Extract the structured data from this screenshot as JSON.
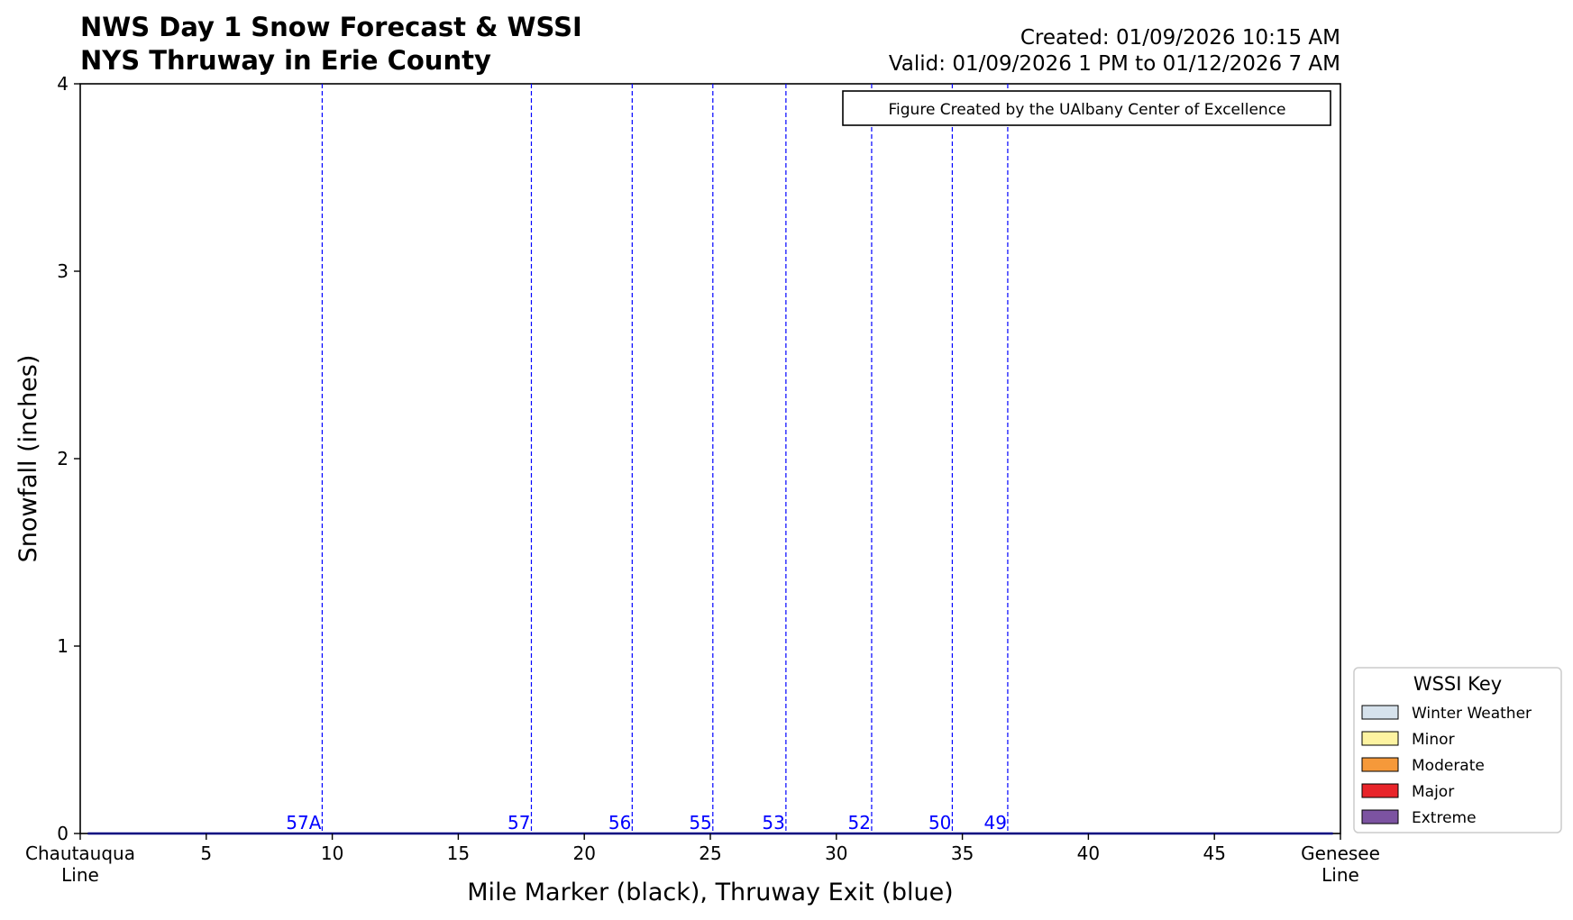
{
  "chart_data": {
    "type": "area",
    "title": "NWS Day 1 Snow Forecast & WSSI",
    "subtitle": "NYS Thruway in Erie County",
    "created": "Created: 01/09/2026 10:15 AM",
    "valid": "Valid: 01/09/2026 1 PM to 01/12/2026 7 AM",
    "credit": "Figure Created by the UAlbany Center of Excellence",
    "xlabel": "Mile Marker (black), Thruway Exit (blue)",
    "ylabel": "Snowfall (inches)",
    "xlim": [
      0,
      50
    ],
    "ylim": [
      0,
      4
    ],
    "x_ticks": [
      {
        "value": 0,
        "lines": [
          "Chautauqua",
          "Line"
        ]
      },
      {
        "value": 5,
        "lines": [
          "5"
        ]
      },
      {
        "value": 10,
        "lines": [
          "10"
        ]
      },
      {
        "value": 15,
        "lines": [
          "15"
        ]
      },
      {
        "value": 20,
        "lines": [
          "20"
        ]
      },
      {
        "value": 25,
        "lines": [
          "25"
        ]
      },
      {
        "value": 30,
        "lines": [
          "30"
        ]
      },
      {
        "value": 35,
        "lines": [
          "35"
        ]
      },
      {
        "value": 40,
        "lines": [
          "40"
        ]
      },
      {
        "value": 45,
        "lines": [
          "45"
        ]
      },
      {
        "value": 50,
        "lines": [
          "Genesee",
          "Line"
        ]
      }
    ],
    "y_ticks": [
      0,
      1,
      2,
      3,
      4
    ],
    "exits": [
      {
        "label": "57A",
        "mile": 9.6
      },
      {
        "label": "57",
        "mile": 17.9
      },
      {
        "label": "56",
        "mile": 21.9
      },
      {
        "label": "55",
        "mile": 25.1
      },
      {
        "label": "53",
        "mile": 28.0
      },
      {
        "label": "52",
        "mile": 31.4
      },
      {
        "label": "50",
        "mile": 34.6
      },
      {
        "label": "49",
        "mile": 36.8
      }
    ],
    "series": [
      {
        "x": [
          0.3,
          49.7
        ],
        "y": [
          0,
          0
        ]
      }
    ],
    "legend": {
      "title": "WSSI Key",
      "placement": "outside-bottom-right",
      "items": [
        {
          "label": "Winter Weather",
          "color": "#d6e2ec"
        },
        {
          "label": "Minor",
          "color": "#fdf3a1"
        },
        {
          "label": "Moderate",
          "color": "#f5993a"
        },
        {
          "label": "Major",
          "color": "#e8242a"
        },
        {
          "label": "Extreme",
          "color": "#7c53a1"
        }
      ]
    },
    "colors": {
      "exit": "#0000ff",
      "line": "#000080",
      "axis": "#000000"
    }
  }
}
